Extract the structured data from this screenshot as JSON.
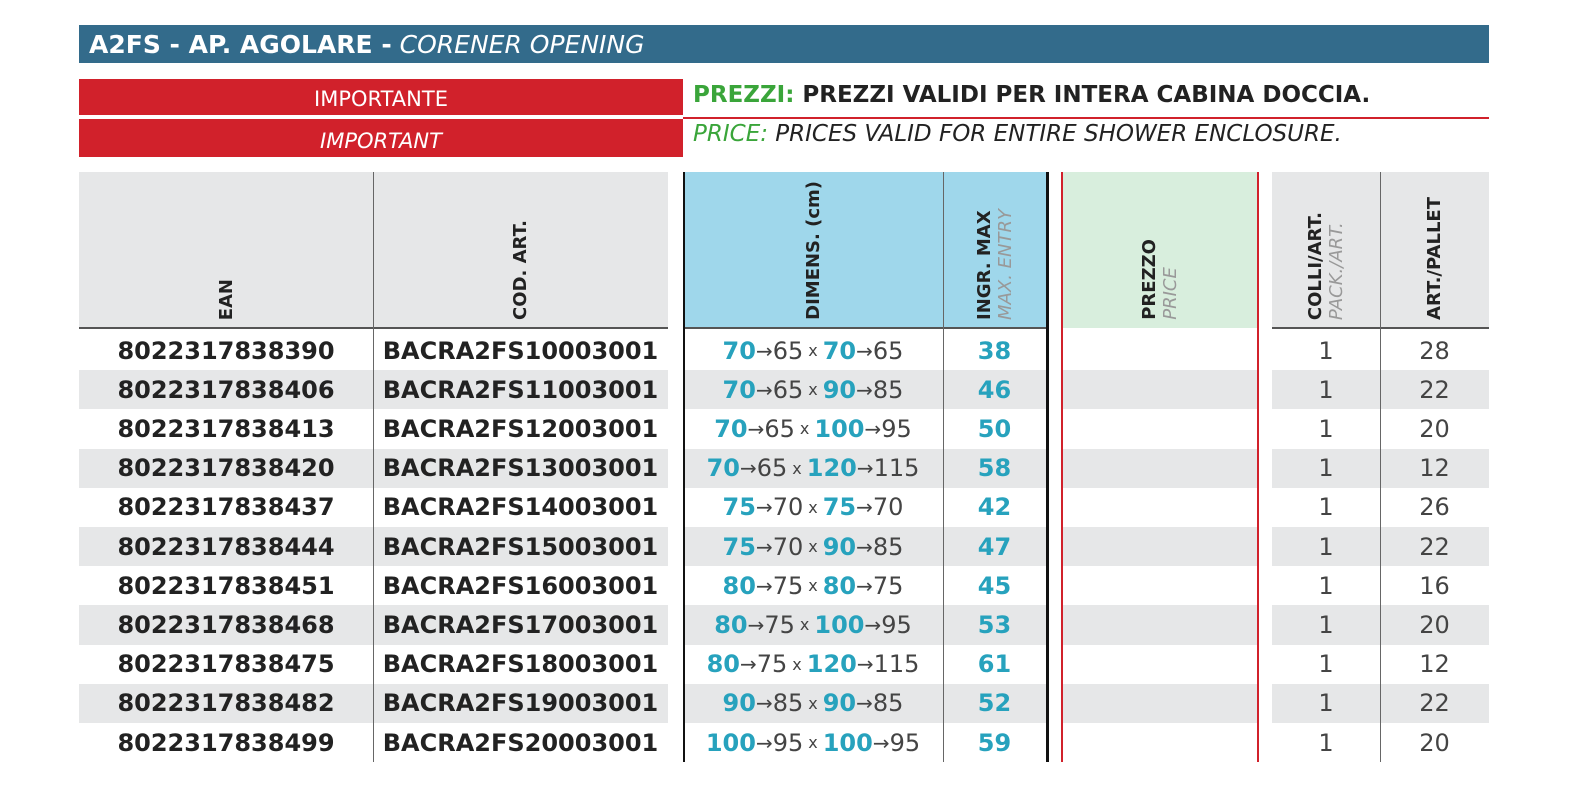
{
  "header": {
    "title": "A2FS - AP. AGOLARE  -",
    "subtitle": "CORENER OPENING"
  },
  "notice": {
    "label_it": "IMPORTANTE",
    "label_en": "IMPORTANT",
    "prefix_it": "PREZZI:",
    "text_it": "PREZZI VALIDI PER INTERA CABINA DOCCIA.",
    "prefix_en": "PRICE:",
    "text_en": "PRICES VALID FOR ENTIRE SHOWER ENCLOSURE."
  },
  "table": {
    "arrow": "→",
    "times": "x",
    "columns": [
      {
        "label": "EAN"
      },
      {
        "label": "COD. ART."
      },
      {
        "label": "DIMENS. (cm)"
      },
      {
        "label": "INGR. MAX",
        "sublabel": "MAX. ENTRY"
      },
      {
        "label": "PREZZO",
        "sublabel": "PRICE"
      },
      {
        "label": "COLLI/ART.",
        "sublabel": "PACK./ART."
      },
      {
        "label": "ART./PALLET"
      }
    ],
    "rows": [
      {
        "ean": "8022317838390",
        "code": "BACRA2FS10003001",
        "w_max": 70,
        "w_min": 65,
        "d_max": 70,
        "d_min": 65,
        "entry": 38,
        "pack": 1,
        "pallet": 28
      },
      {
        "ean": "8022317838406",
        "code": "BACRA2FS11003001",
        "w_max": 70,
        "w_min": 65,
        "d_max": 90,
        "d_min": 85,
        "entry": 46,
        "pack": 1,
        "pallet": 22
      },
      {
        "ean": "8022317838413",
        "code": "BACRA2FS12003001",
        "w_max": 70,
        "w_min": 65,
        "d_max": 100,
        "d_min": 95,
        "entry": 50,
        "pack": 1,
        "pallet": 20
      },
      {
        "ean": "8022317838420",
        "code": "BACRA2FS13003001",
        "w_max": 70,
        "w_min": 65,
        "d_max": 120,
        "d_min": 115,
        "entry": 58,
        "pack": 1,
        "pallet": 12
      },
      {
        "ean": "8022317838437",
        "code": "BACRA2FS14003001",
        "w_max": 75,
        "w_min": 70,
        "d_max": 75,
        "d_min": 70,
        "entry": 42,
        "pack": 1,
        "pallet": 26
      },
      {
        "ean": "8022317838444",
        "code": "BACRA2FS15003001",
        "w_max": 75,
        "w_min": 70,
        "d_max": 90,
        "d_min": 85,
        "entry": 47,
        "pack": 1,
        "pallet": 22
      },
      {
        "ean": "8022317838451",
        "code": "BACRA2FS16003001",
        "w_max": 80,
        "w_min": 75,
        "d_max": 80,
        "d_min": 75,
        "entry": 45,
        "pack": 1,
        "pallet": 16
      },
      {
        "ean": "8022317838468",
        "code": "BACRA2FS17003001",
        "w_max": 80,
        "w_min": 75,
        "d_max": 100,
        "d_min": 95,
        "entry": 53,
        "pack": 1,
        "pallet": 20
      },
      {
        "ean": "8022317838475",
        "code": "BACRA2FS18003001",
        "w_max": 80,
        "w_min": 75,
        "d_max": 120,
        "d_min": 115,
        "entry": 61,
        "pack": 1,
        "pallet": 12
      },
      {
        "ean": "8022317838482",
        "code": "BACRA2FS19003001",
        "w_max": 90,
        "w_min": 85,
        "d_max": 90,
        "d_min": 85,
        "entry": 52,
        "pack": 1,
        "pallet": 22
      },
      {
        "ean": "8022317838499",
        "code": "BACRA2FS20003001",
        "w_max": 100,
        "w_min": 95,
        "d_max": 100,
        "d_min": 95,
        "entry": 59,
        "pack": 1,
        "pallet": 20
      }
    ]
  }
}
